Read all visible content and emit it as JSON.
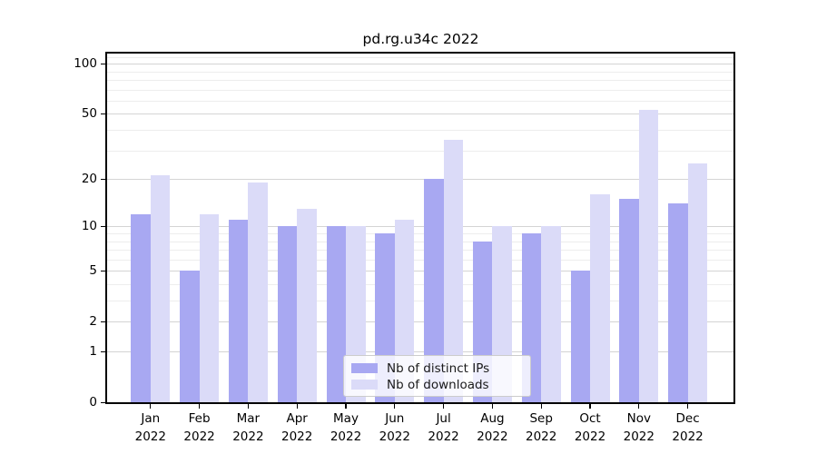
{
  "chart_data": {
    "type": "bar",
    "title": "pd.rg.u34c 2022",
    "categories": [
      "Jan",
      "Feb",
      "Mar",
      "Apr",
      "May",
      "Jun",
      "Jul",
      "Aug",
      "Sep",
      "Oct",
      "Nov",
      "Dec"
    ],
    "category_year": "2022",
    "xlabel": "",
    "ylabel": "",
    "yscale": "log1p",
    "ylim": [
      0,
      115
    ],
    "yticks": [
      0,
      1,
      2,
      5,
      10,
      20,
      50,
      100
    ],
    "grid": true,
    "grid_major_values": [
      1,
      2,
      5,
      10,
      20,
      50,
      100
    ],
    "grid_minor_values": [
      3,
      4,
      6,
      7,
      8,
      9,
      30,
      40,
      60,
      70,
      80,
      90,
      110
    ],
    "legend_position": "lower center",
    "series": [
      {
        "name": "Nb of distinct IPs",
        "color": "#a8a8f2",
        "values": [
          12,
          5,
          11,
          10,
          10,
          9,
          20,
          8,
          9,
          5,
          15,
          14
        ]
      },
      {
        "name": "Nb of downloads",
        "color": "#dbdbf8",
        "values": [
          21,
          12,
          19,
          13,
          10,
          11,
          35,
          10,
          10,
          16,
          53,
          25
        ]
      }
    ]
  },
  "colors": {
    "spine": "#000000",
    "grid_major": "#d4d4d4",
    "grid_minor": "#ededed",
    "tick_text": "#000000",
    "legend_border": "#cccccc"
  }
}
